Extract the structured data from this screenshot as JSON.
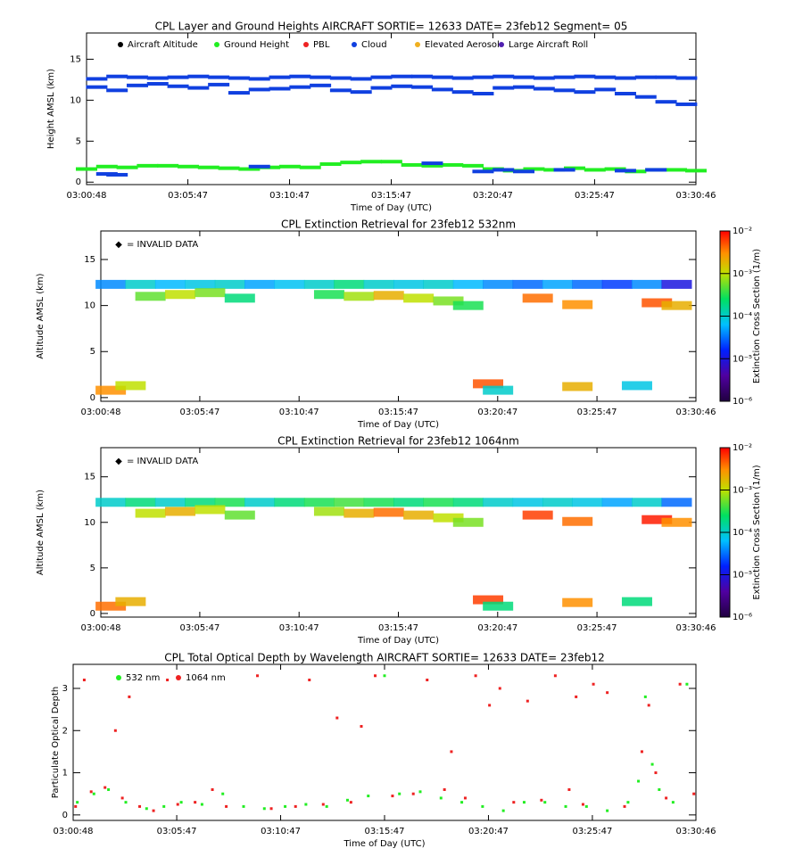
{
  "chart_data": [
    {
      "type": "scatter",
      "title": "CPL Layer and Ground Heights AIRCRAFT SORTIE= 12633 DATE= 23feb12 Segment= 05",
      "xlabel": "Time of Day (UTC)",
      "ylabel": "Height AMSL (km)",
      "xlim": [
        "03:00:48",
        "03:30:46"
      ],
      "xticks": [
        "03:00:48",
        "03:05:47",
        "03:10:47",
        "03:15:47",
        "03:20:47",
        "03:25:47",
        "03:30:46"
      ],
      "ylim": [
        -0.3,
        18.2
      ],
      "yticks": [
        0,
        5,
        10,
        15
      ],
      "series": [
        {
          "name": "Aircraft Altitude",
          "color": "#000000",
          "x": [],
          "values": []
        },
        {
          "name": "Ground Height",
          "color": "#22ee22",
          "x": [
            "03:00:48",
            "03:01:48",
            "03:02:48",
            "03:03:48",
            "03:04:48",
            "03:05:48",
            "03:06:48",
            "03:07:48",
            "03:08:48",
            "03:09:48",
            "03:10:48",
            "03:11:48",
            "03:12:48",
            "03:13:48",
            "03:14:48",
            "03:15:48",
            "03:16:48",
            "03:17:48",
            "03:18:48",
            "03:19:48",
            "03:20:48",
            "03:21:48",
            "03:22:48",
            "03:23:48",
            "03:24:48",
            "03:25:48",
            "03:26:48",
            "03:27:48",
            "03:28:48",
            "03:29:48",
            "03:30:46"
          ],
          "values": [
            1.6,
            1.9,
            1.8,
            2.0,
            2.0,
            1.9,
            1.8,
            1.7,
            1.6,
            1.8,
            1.9,
            1.8,
            2.2,
            2.4,
            2.5,
            2.5,
            2.1,
            2.0,
            2.1,
            2.0,
            1.6,
            1.4,
            1.6,
            1.5,
            1.7,
            1.5,
            1.6,
            1.3,
            1.5,
            1.5,
            1.4
          ]
        },
        {
          "name": "PBL",
          "color": "#ee2222",
          "x": [],
          "values": []
        },
        {
          "name": "Cloud",
          "color": "#1040e0",
          "x": [
            "03:01:18",
            "03:02:18",
            "03:03:18",
            "03:04:18",
            "03:05:18",
            "03:06:18",
            "03:07:18",
            "03:08:18",
            "03:09:18",
            "03:10:18",
            "03:11:18",
            "03:12:18",
            "03:13:18",
            "03:14:18",
            "03:15:18",
            "03:16:18",
            "03:17:18",
            "03:18:18",
            "03:19:18",
            "03:20:18",
            "03:21:18",
            "03:22:18",
            "03:23:18",
            "03:24:18",
            "03:25:18",
            "03:26:18",
            "03:27:18",
            "03:28:18",
            "03:29:18",
            "03:30:18",
            "03:01:18",
            "03:02:18",
            "03:03:18",
            "03:04:18",
            "03:05:18",
            "03:06:18",
            "03:07:18",
            "03:08:18",
            "03:09:18",
            "03:10:18",
            "03:11:18",
            "03:12:18",
            "03:13:18",
            "03:14:18",
            "03:15:18",
            "03:16:18",
            "03:17:18",
            "03:18:18",
            "03:19:18",
            "03:20:18",
            "03:21:18",
            "03:22:18",
            "03:23:18",
            "03:24:18",
            "03:25:18",
            "03:26:18",
            "03:27:18",
            "03:28:18",
            "03:29:18",
            "03:30:18",
            "03:01:48",
            "03:02:18",
            "03:09:18",
            "03:17:48",
            "03:20:18",
            "03:21:18",
            "03:22:18",
            "03:24:18",
            "03:27:18",
            "03:28:48"
          ],
          "values": [
            12.6,
            12.9,
            12.8,
            12.7,
            12.8,
            12.9,
            12.8,
            12.7,
            12.6,
            12.8,
            12.9,
            12.8,
            12.7,
            12.6,
            12.8,
            12.9,
            12.9,
            12.8,
            12.7,
            12.8,
            12.9,
            12.8,
            12.7,
            12.8,
            12.9,
            12.8,
            12.7,
            12.8,
            12.8,
            12.7,
            11.6,
            11.2,
            11.8,
            12.0,
            11.7,
            11.5,
            11.9,
            10.9,
            11.3,
            11.4,
            11.6,
            11.8,
            11.2,
            11.0,
            11.5,
            11.7,
            11.6,
            11.3,
            11.0,
            10.8,
            11.5,
            11.6,
            11.4,
            11.2,
            11.0,
            11.3,
            10.8,
            10.4,
            9.8,
            9.5,
            1.0,
            0.9,
            1.9,
            2.3,
            1.3,
            1.5,
            1.3,
            1.5,
            1.4,
            1.5
          ]
        },
        {
          "name": "Elevated Aerosol",
          "color": "#f0b020",
          "x": [],
          "values": []
        },
        {
          "name": "Large Aircraft Roll",
          "color": "#5020b0",
          "x": [],
          "values": []
        }
      ]
    },
    {
      "type": "colorscatter",
      "title": "CPL Extinction Retrieval for 23feb12      532nm",
      "xlabel": "Time of Day (UTC)",
      "ylabel": "Altitude AMSL (km)",
      "annotation": "= INVALID DATA",
      "colorbar_label": "Extinction Cross Section (1/m)",
      "clim": [
        1e-06,
        0.01
      ],
      "clog": true,
      "cticks": [
        {
          "value": 0.01,
          "label": "10⁻²"
        },
        {
          "value": 0.001,
          "label": "10⁻³"
        },
        {
          "value": 0.0001,
          "label": "10⁻⁴"
        },
        {
          "value": 1e-05,
          "label": "10⁻⁵"
        },
        {
          "value": 1e-06,
          "label": "10⁻⁶"
        }
      ],
      "xlim": [
        "03:00:48",
        "03:30:46"
      ],
      "xticks": [
        "03:00:48",
        "03:05:47",
        "03:10:47",
        "03:15:47",
        "03:20:47",
        "03:25:47",
        "03:30:46"
      ],
      "ylim": [
        -0.4,
        18.1
      ],
      "yticks": [
        0,
        5,
        10,
        15
      ],
      "x": [
        "03:01:18",
        "03:02:48",
        "03:04:18",
        "03:05:48",
        "03:07:18",
        "03:08:48",
        "03:10:18",
        "03:11:48",
        "03:13:18",
        "03:14:48",
        "03:16:18",
        "03:17:48",
        "03:19:18",
        "03:20:48",
        "03:22:18",
        "03:23:48",
        "03:25:18",
        "03:26:48",
        "03:28:18",
        "03:29:48",
        "03:03:18",
        "03:04:48",
        "03:06:18",
        "03:07:48",
        "03:12:18",
        "03:13:48",
        "03:15:18",
        "03:16:48",
        "03:18:18",
        "03:19:18",
        "03:22:48",
        "03:24:48",
        "03:28:48",
        "03:29:48",
        "03:01:18",
        "03:02:18",
        "03:20:18",
        "03:20:48",
        "03:24:48",
        "03:27:48"
      ],
      "y": [
        12.3,
        12.3,
        12.3,
        12.3,
        12.3,
        12.3,
        12.3,
        12.3,
        12.3,
        12.3,
        12.3,
        12.3,
        12.3,
        12.3,
        12.3,
        12.3,
        12.3,
        12.3,
        12.3,
        12.3,
        11.0,
        11.2,
        11.4,
        10.8,
        11.2,
        11.0,
        11.1,
        10.8,
        10.5,
        10.0,
        10.8,
        10.1,
        10.3,
        10.0,
        0.8,
        1.3,
        1.5,
        0.8,
        1.2,
        1.3
      ],
      "values": [
        4e-05,
        0.0001,
        6e-05,
        8e-05,
        0.0001,
        5e-05,
        7e-05,
        0.0001,
        0.0002,
        0.0001,
        8e-05,
        0.0001,
        6e-05,
        4e-05,
        3e-05,
        5e-05,
        3e-05,
        2e-05,
        4e-05,
        1e-05,
        0.0005,
        0.001,
        0.0006,
        0.0002,
        0.0003,
        0.0008,
        0.002,
        0.001,
        0.0006,
        0.0003,
        0.004,
        0.003,
        0.005,
        0.002,
        0.003,
        0.001,
        0.005,
        0.0001,
        0.002,
        8e-05
      ]
    },
    {
      "type": "colorscatter",
      "title": "CPL Extinction Retrieval for 23feb12    1064nm",
      "xlabel": "Time of Day (UTC)",
      "ylabel": "Altitude AMSL (km)",
      "annotation": "= INVALID DATA",
      "colorbar_label": "Extinction Cross Section (1/m)",
      "clim": [
        1e-06,
        0.01
      ],
      "clog": true,
      "cticks": [
        {
          "value": 0.01,
          "label": "10⁻²"
        },
        {
          "value": 0.001,
          "label": "10⁻³"
        },
        {
          "value": 0.0001,
          "label": "10⁻⁴"
        },
        {
          "value": 1e-05,
          "label": "10⁻⁵"
        },
        {
          "value": 1e-06,
          "label": "10⁻⁶"
        }
      ],
      "xlim": [
        "03:00:48",
        "03:30:46"
      ],
      "xticks": [
        "03:00:48",
        "03:05:47",
        "03:10:47",
        "03:15:47",
        "03:20:47",
        "03:25:47",
        "03:30:46"
      ],
      "ylim": [
        -0.4,
        18.2
      ],
      "yticks": [
        0,
        5,
        10,
        15
      ],
      "x": [
        "03:01:18",
        "03:02:48",
        "03:04:18",
        "03:05:48",
        "03:07:18",
        "03:08:48",
        "03:10:18",
        "03:11:48",
        "03:13:18",
        "03:14:48",
        "03:16:18",
        "03:17:48",
        "03:19:18",
        "03:20:48",
        "03:22:18",
        "03:23:48",
        "03:25:18",
        "03:26:48",
        "03:28:18",
        "03:29:48",
        "03:03:18",
        "03:04:48",
        "03:06:18",
        "03:07:48",
        "03:12:18",
        "03:13:48",
        "03:15:18",
        "03:16:48",
        "03:18:18",
        "03:19:18",
        "03:22:48",
        "03:24:48",
        "03:28:48",
        "03:29:48",
        "03:01:18",
        "03:02:18",
        "03:20:18",
        "03:20:48",
        "03:24:48",
        "03:27:48"
      ],
      "y": [
        12.2,
        12.2,
        12.2,
        12.2,
        12.2,
        12.2,
        12.2,
        12.2,
        12.2,
        12.2,
        12.2,
        12.2,
        12.2,
        12.2,
        12.2,
        12.2,
        12.2,
        12.2,
        12.2,
        12.2,
        11.0,
        11.2,
        11.4,
        10.8,
        11.2,
        11.0,
        11.1,
        10.8,
        10.5,
        10.0,
        10.8,
        10.1,
        10.3,
        10.0,
        0.8,
        1.3,
        1.5,
        0.8,
        1.2,
        1.3
      ],
      "values": [
        0.0001,
        0.0002,
        0.0001,
        0.0002,
        0.0003,
        0.0001,
        0.0002,
        0.0003,
        0.0004,
        0.0003,
        0.0002,
        0.0003,
        0.0002,
        0.0001,
        8e-05,
        0.0001,
        8e-05,
        5e-05,
        0.0001,
        3e-05,
        0.001,
        0.002,
        0.001,
        0.0005,
        0.0008,
        0.002,
        0.004,
        0.002,
        0.001,
        0.0006,
        0.006,
        0.004,
        0.008,
        0.003,
        0.004,
        0.002,
        0.006,
        0.0002,
        0.003,
        0.0002
      ]
    },
    {
      "type": "scatter",
      "title": "CPL Total Optical Depth by Wavelength AIRCRAFT SORTIE= 12633 DATE= 23feb12",
      "xlabel": "Time of Day (UTC)",
      "ylabel": "Particulate Optical Depth",
      "xlim": [
        "03:00:48",
        "03:30:46"
      ],
      "xticks": [
        "03:00:48",
        "03:05:47",
        "03:10:47",
        "03:15:47",
        "03:20:47",
        "03:25:47",
        "03:30:46"
      ],
      "ylim": [
        -0.13,
        3.57
      ],
      "yticks": [
        0,
        1,
        2,
        3
      ],
      "series": [
        {
          "name": "532 nm",
          "color": "#22ee22",
          "x": [
            "03:01:00",
            "03:01:48",
            "03:02:30",
            "03:03:20",
            "03:04:20",
            "03:05:10",
            "03:06:00",
            "03:07:00",
            "03:08:00",
            "03:09:00",
            "03:10:00",
            "03:11:00",
            "03:12:00",
            "03:13:00",
            "03:14:00",
            "03:15:00",
            "03:15:47",
            "03:16:30",
            "03:17:30",
            "03:18:30",
            "03:19:30",
            "03:20:30",
            "03:21:30",
            "03:22:30",
            "03:23:30",
            "03:24:30",
            "03:25:30",
            "03:26:30",
            "03:27:30",
            "03:28:00",
            "03:28:20",
            "03:28:40",
            "03:29:00",
            "03:29:40",
            "03:30:20"
          ],
          "values": [
            0.3,
            0.5,
            0.6,
            0.3,
            0.15,
            0.2,
            0.3,
            0.25,
            0.5,
            0.2,
            0.15,
            0.2,
            0.25,
            0.2,
            0.35,
            0.45,
            3.3,
            0.5,
            0.55,
            0.4,
            0.3,
            0.2,
            0.1,
            0.3,
            0.3,
            0.2,
            0.2,
            0.1,
            0.3,
            0.8,
            2.8,
            1.2,
            0.6,
            0.3,
            3.1
          ]
        },
        {
          "name": "1064 nm",
          "color": "#ee2222",
          "x": [
            "03:00:55",
            "03:01:20",
            "03:01:40",
            "03:02:20",
            "03:02:50",
            "03:03:10",
            "03:03:30",
            "03:04:00",
            "03:04:40",
            "03:05:20",
            "03:05:50",
            "03:06:40",
            "03:07:30",
            "03:08:10",
            "03:09:40",
            "03:10:20",
            "03:11:30",
            "03:12:10",
            "03:12:50",
            "03:13:30",
            "03:14:10",
            "03:14:40",
            "03:15:20",
            "03:16:10",
            "03:17:10",
            "03:17:50",
            "03:18:40",
            "03:19:00",
            "03:19:40",
            "03:20:10",
            "03:20:50",
            "03:21:20",
            "03:22:00",
            "03:22:40",
            "03:23:20",
            "03:24:00",
            "03:24:40",
            "03:25:00",
            "03:25:20",
            "03:25:50",
            "03:26:30",
            "03:27:20",
            "03:28:10",
            "03:28:30",
            "03:28:50",
            "03:29:20",
            "03:30:00",
            "03:30:40"
          ],
          "values": [
            0.2,
            3.2,
            0.55,
            0.65,
            2.0,
            0.4,
            2.8,
            0.2,
            0.1,
            3.2,
            0.25,
            0.3,
            0.6,
            0.2,
            3.3,
            0.15,
            0.2,
            3.2,
            0.25,
            2.3,
            0.3,
            2.1,
            3.3,
            0.45,
            0.5,
            3.2,
            0.6,
            1.5,
            0.4,
            3.3,
            2.6,
            3.0,
            0.3,
            2.7,
            0.35,
            3.3,
            0.6,
            2.8,
            0.25,
            3.1,
            2.9,
            0.2,
            1.5,
            2.6,
            1.0,
            0.4,
            3.1,
            0.5
          ]
        }
      ]
    }
  ]
}
